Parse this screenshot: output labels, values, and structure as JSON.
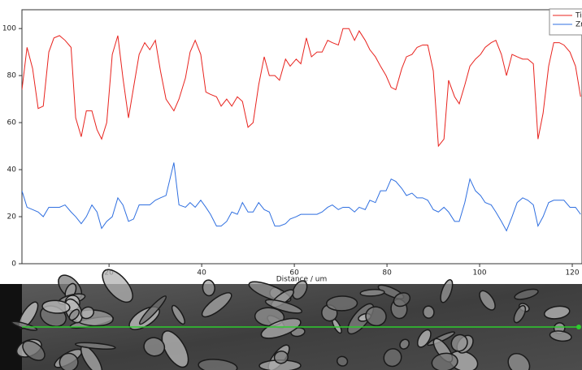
{
  "chart_data": {
    "type": "line",
    "x_label": "Distance / um",
    "x": [
      1.2,
      2.3,
      3.5,
      4.7,
      5.8,
      7.0,
      8.1,
      9.3,
      10.5,
      11.8,
      12.8,
      14.0,
      15.1,
      16.3,
      17.4,
      18.4,
      19.5,
      20.7,
      21.9,
      23.0,
      24.2,
      25.3,
      26.5,
      27.7,
      28.8,
      30.0,
      31.1,
      32.3,
      34.0,
      35.1,
      36.5,
      37.5,
      38.6,
      39.8,
      40.9,
      41.9,
      43.2,
      44.2,
      45.4,
      46.5,
      47.7,
      48.8,
      50.0,
      51.1,
      52.3,
      53.5,
      54.6,
      55.8,
      56.8,
      58.1,
      59.1,
      60.4,
      61.4,
      62.6,
      63.7,
      64.9,
      66.0,
      67.2,
      68.2,
      69.5,
      70.5,
      71.8,
      73.0,
      74.0,
      75.3,
      76.3,
      77.5,
      78.6,
      79.8,
      80.9,
      81.9,
      83.2,
      84.2,
      85.4,
      86.5,
      87.7,
      88.8,
      90.0,
      91.1,
      92.3,
      93.3,
      94.6,
      95.6,
      96.8,
      97.9,
      99.1,
      100.2,
      101.2,
      102.5,
      103.5,
      104.7,
      105.8,
      107.0,
      108.1,
      109.3,
      110.4,
      111.6,
      112.6,
      113.7,
      114.9,
      116.0,
      117.2,
      118.2,
      119.5,
      120.7,
      121.8
    ],
    "series": [
      {
        "name": "Ti",
        "color": "#e8231e",
        "values": [
          74,
          92,
          83,
          66,
          67,
          90,
          96,
          97,
          95,
          92,
          62,
          54,
          65,
          65,
          57,
          53,
          60,
          89,
          97,
          79,
          62,
          75,
          89,
          94,
          91,
          95,
          82,
          70,
          65,
          70,
          79,
          90,
          95,
          89,
          73,
          72,
          71,
          67,
          70,
          67,
          71,
          69,
          58,
          60,
          76,
          88,
          80,
          80,
          78,
          87,
          84,
          87,
          85,
          96,
          88,
          90,
          90,
          95,
          94,
          93,
          100,
          100,
          95,
          99,
          95,
          91,
          88,
          84,
          80,
          75,
          74,
          83,
          88,
          89,
          92,
          93,
          93,
          82,
          50,
          53,
          78,
          71,
          68,
          76,
          84,
          87,
          89,
          92,
          94,
          95,
          89,
          80,
          89,
          88,
          87,
          87,
          85,
          53,
          64,
          84,
          94,
          94,
          93,
          90,
          84,
          71
        ]
      },
      {
        "name": "Zr",
        "color": "#2f6fe0",
        "values": [
          31,
          24,
          23,
          22,
          20,
          24,
          24,
          24,
          25,
          22,
          20,
          17,
          20,
          25,
          22,
          15,
          18,
          20,
          28,
          25,
          18,
          19,
          25,
          25,
          25,
          27,
          28,
          29,
          43,
          25,
          24,
          26,
          24,
          27,
          24,
          21,
          16,
          16,
          18,
          22,
          21,
          26,
          22,
          22,
          26,
          23,
          22,
          16,
          16,
          17,
          19,
          20,
          21,
          21,
          21,
          21,
          22,
          24,
          25,
          23,
          24,
          24,
          22,
          24,
          23,
          27,
          26,
          31,
          31,
          36,
          35,
          32,
          29,
          30,
          28,
          28,
          27,
          23,
          22,
          24,
          22,
          18,
          18,
          26,
          36,
          31,
          29,
          26,
          25,
          22,
          18,
          14,
          20,
          26,
          28,
          27,
          25,
          16,
          20,
          26,
          27,
          27,
          27,
          24,
          24,
          21
        ]
      }
    ],
    "xlim": [
      1.2,
      122.1
    ],
    "xticks": [
      20,
      40,
      60,
      80,
      100,
      120
    ],
    "ylim": [
      0,
      108
    ],
    "yticks": [
      0,
      20,
      40,
      60,
      80,
      100
    ],
    "legend": "upper right"
  }
}
